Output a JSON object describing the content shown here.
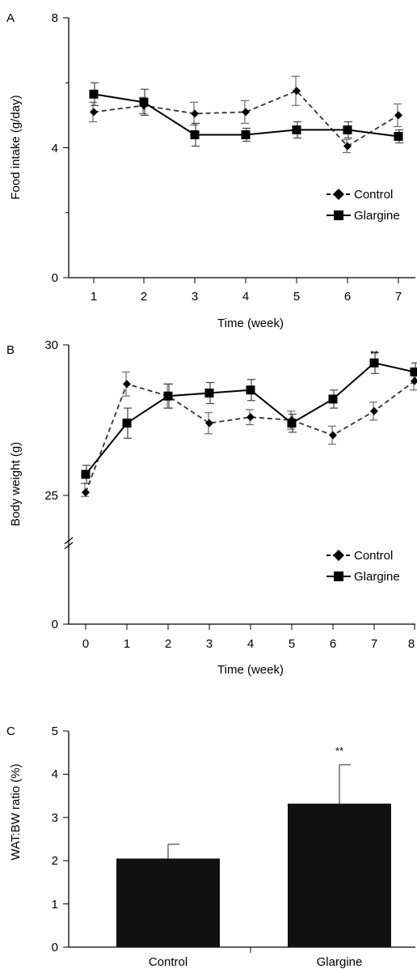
{
  "chart_data": [
    {
      "type": "line",
      "panel_label": "A",
      "title": "",
      "xlabel": "Time (week)",
      "ylabel": "Food intake (g/day)",
      "x": [
        1,
        2,
        3,
        4,
        5,
        6,
        7
      ],
      "xlim": [
        0.5,
        7.3
      ],
      "ylim": [
        0,
        8
      ],
      "xticks": [
        "1",
        "2",
        "3",
        "4",
        "5",
        "6",
        "7"
      ],
      "yticks": [
        "0",
        "4",
        "8"
      ],
      "grid": false,
      "legend_position": "right",
      "series": [
        {
          "name": "Control",
          "style": "dashed",
          "marker": "diamond",
          "values": [
            5.1,
            5.3,
            5.05,
            5.1,
            5.75,
            4.05,
            5.0
          ],
          "errors": [
            0.3,
            0.25,
            0.35,
            0.35,
            0.45,
            0.2,
            0.35
          ]
        },
        {
          "name": "Glargine",
          "style": "solid",
          "marker": "square",
          "values": [
            5.65,
            5.4,
            4.4,
            4.4,
            4.55,
            4.55,
            4.35
          ],
          "errors": [
            0.35,
            0.4,
            0.35,
            0.2,
            0.25,
            0.25,
            0.2
          ]
        }
      ],
      "annotations": []
    },
    {
      "type": "line",
      "panel_label": "B",
      "title": "",
      "xlabel": "Time (week)",
      "ylabel": "Body weight (g)",
      "x": [
        0,
        1,
        2,
        3,
        4,
        5,
        6,
        7,
        8
      ],
      "xlim": [
        -0.5,
        8
      ],
      "ylim": [
        0,
        30
      ],
      "xticks": [
        "0",
        "1",
        "2",
        "3",
        "4",
        "5",
        "6",
        "7",
        "8"
      ],
      "yticks": [
        "0",
        "25",
        "30"
      ],
      "grid": false,
      "legend_position": "right",
      "series": [
        {
          "name": "Control",
          "style": "dashed",
          "marker": "diamond",
          "values": [
            25.1,
            28.7,
            28.3,
            27.4,
            27.6,
            27.5,
            27.0,
            27.8,
            28.8
          ],
          "errors": [
            0.3,
            0.4,
            0.4,
            0.35,
            0.25,
            0.3,
            0.3,
            0.3,
            0.3
          ]
        },
        {
          "name": "Glargine",
          "style": "solid",
          "marker": "square",
          "values": [
            25.7,
            27.4,
            28.3,
            28.4,
            28.5,
            27.4,
            28.2,
            29.4,
            29.1
          ],
          "errors": [
            0.3,
            0.5,
            0.4,
            0.35,
            0.35,
            0.3,
            0.3,
            0.35,
            0.3
          ]
        }
      ],
      "annotations": [
        {
          "x": 7,
          "text": "**"
        }
      ]
    },
    {
      "type": "bar",
      "panel_label": "C",
      "title": "",
      "xlabel": "",
      "ylabel": "WAT:BW ratio (%)",
      "categories": [
        "Control",
        "Glargine"
      ],
      "values": [
        2.05,
        3.32
      ],
      "errors": [
        0.33,
        0.9
      ],
      "ylim": [
        0,
        5
      ],
      "yticks": [
        "0",
        "1",
        "2",
        "3",
        "4",
        "5"
      ],
      "grid": false,
      "bar_color": "#111111",
      "annotations": [
        {
          "category": "Glargine",
          "text": "**"
        }
      ]
    }
  ]
}
